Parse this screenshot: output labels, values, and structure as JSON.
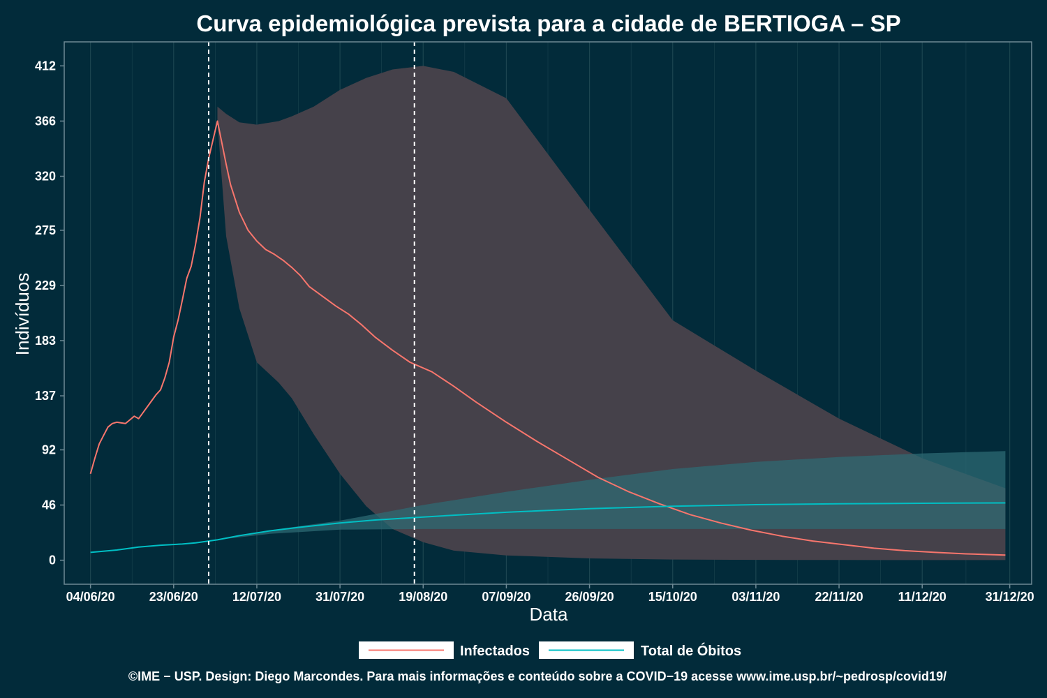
{
  "chart_data": {
    "type": "line",
    "title": "Curva epidemiológica prevista para a cidade de BERTIOGA – SP",
    "xlabel": "Data",
    "ylabel": "Indivíduos",
    "x_ticks": [
      "04/06/20",
      "23/06/20",
      "12/07/20",
      "31/07/20",
      "19/08/20",
      "07/09/20",
      "26/09/20",
      "15/10/20",
      "03/11/20",
      "22/11/20",
      "11/12/20",
      "31/12/20"
    ],
    "y_ticks": [
      "0",
      "46",
      "92",
      "137",
      "183",
      "229",
      "275",
      "320",
      "366",
      "412"
    ],
    "x_range": [
      "29/05/20",
      "05/01/21"
    ],
    "ylim": [
      -20,
      432
    ],
    "grid": true,
    "legend_position": "bottom",
    "vlines": [
      "01/07/20",
      "17/08/20"
    ],
    "colors": {
      "background": "#022B3A",
      "infectados": "#F8766D",
      "obitos": "#00BFC4",
      "band_infectados": "#45414A",
      "band_obitos": "#2E6B74",
      "grid": "#1C4550",
      "axis": "#6E8A95"
    },
    "series": [
      {
        "name": "Infectados",
        "color": "#F8766D",
        "points": [
          [
            "04/06/20",
            72
          ],
          [
            "05/06/20",
            85
          ],
          [
            "06/06/20",
            97
          ],
          [
            "07/06/20",
            104
          ],
          [
            "08/06/20",
            111
          ],
          [
            "09/06/20",
            114
          ],
          [
            "10/06/20",
            115
          ],
          [
            "12/06/20",
            114
          ],
          [
            "13/06/20",
            117
          ],
          [
            "14/06/20",
            120
          ],
          [
            "15/06/20",
            118
          ],
          [
            "16/06/20",
            123
          ],
          [
            "18/06/20",
            133
          ],
          [
            "19/06/20",
            138
          ],
          [
            "20/06/20",
            142
          ],
          [
            "21/06/20",
            152
          ],
          [
            "22/06/20",
            165
          ],
          [
            "23/06/20",
            186
          ],
          [
            "24/06/20",
            200
          ],
          [
            "25/06/20",
            217
          ],
          [
            "26/06/20",
            235
          ],
          [
            "27/06/20",
            245
          ],
          [
            "28/06/20",
            263
          ],
          [
            "29/06/20",
            285
          ],
          [
            "30/06/20",
            315
          ],
          [
            "01/07/20",
            335
          ],
          [
            "03/07/20",
            366
          ],
          [
            "04/07/20",
            348
          ],
          [
            "05/07/20",
            330
          ],
          [
            "06/07/20",
            313
          ],
          [
            "08/07/20",
            290
          ],
          [
            "10/07/20",
            275
          ],
          [
            "12/07/20",
            266
          ],
          [
            "14/07/20",
            259
          ],
          [
            "16/07/20",
            255
          ],
          [
            "18/07/20",
            250
          ],
          [
            "20/07/20",
            244
          ],
          [
            "22/07/20",
            237
          ],
          [
            "24/07/20",
            228
          ],
          [
            "27/07/20",
            220
          ],
          [
            "30/07/20",
            212
          ],
          [
            "02/08/20",
            205
          ],
          [
            "05/08/20",
            196
          ],
          [
            "08/08/20",
            186
          ],
          [
            "12/08/20",
            175
          ],
          [
            "16/08/20",
            165
          ],
          [
            "21/08/20",
            157
          ],
          [
            "26/08/20",
            145
          ],
          [
            "31/08/20",
            132
          ],
          [
            "07/09/20",
            115
          ],
          [
            "14/09/20",
            99
          ],
          [
            "21/09/20",
            84
          ],
          [
            "28/09/20",
            69
          ],
          [
            "05/10/20",
            57
          ],
          [
            "12/10/20",
            47
          ],
          [
            "19/10/20",
            38
          ],
          [
            "26/10/20",
            31
          ],
          [
            "02/11/20",
            25
          ],
          [
            "09/11/20",
            20
          ],
          [
            "16/11/20",
            16
          ],
          [
            "23/11/20",
            13
          ],
          [
            "30/11/20",
            10
          ],
          [
            "07/12/20",
            8
          ],
          [
            "14/12/20",
            6.5
          ],
          [
            "21/12/20",
            5.3
          ],
          [
            "30/12/20",
            4.3
          ]
        ],
        "band": [
          [
            "03/07/20",
            366,
            378
          ],
          [
            "05/07/20",
            270,
            372
          ],
          [
            "08/07/20",
            210,
            365
          ],
          [
            "12/07/20",
            165,
            363
          ],
          [
            "17/07/20",
            148,
            366
          ],
          [
            "20/07/20",
            135,
            370
          ],
          [
            "25/07/20",
            105,
            378
          ],
          [
            "31/07/20",
            72,
            392
          ],
          [
            "06/08/20",
            45,
            402
          ],
          [
            "12/08/20",
            26,
            409
          ],
          [
            "19/08/20",
            15,
            412
          ],
          [
            "26/08/20",
            8,
            407
          ],
          [
            "07/09/20",
            4,
            385
          ],
          [
            "26/09/20",
            1.5,
            292
          ],
          [
            "15/10/20",
            0.6,
            200
          ],
          [
            "03/11/20",
            0.3,
            158
          ],
          [
            "22/11/20",
            0.2,
            118
          ],
          [
            "11/12/20",
            0.1,
            85
          ],
          [
            "30/12/20",
            0.1,
            60
          ]
        ]
      },
      {
        "name": "Total de Óbitos",
        "color": "#00BFC4",
        "points": [
          [
            "04/06/20",
            6.5
          ],
          [
            "10/06/20",
            8.5
          ],
          [
            "15/06/20",
            11
          ],
          [
            "20/06/20",
            12.5
          ],
          [
            "25/06/20",
            13.5
          ],
          [
            "28/06/20",
            14.5
          ],
          [
            "03/07/20",
            17
          ],
          [
            "08/07/20",
            20.5
          ],
          [
            "15/07/20",
            24.5
          ],
          [
            "22/07/20",
            27.5
          ],
          [
            "31/07/20",
            31
          ],
          [
            "08/08/20",
            33.5
          ],
          [
            "19/08/20",
            36
          ],
          [
            "31/08/20",
            38.5
          ],
          [
            "07/09/20",
            40
          ],
          [
            "26/09/20",
            43
          ],
          [
            "15/10/20",
            45
          ],
          [
            "03/11/20",
            46.3
          ],
          [
            "22/11/20",
            47
          ],
          [
            "11/12/20",
            47.5
          ],
          [
            "30/12/20",
            47.8
          ]
        ],
        "band": [
          [
            "03/07/20",
            17,
            17
          ],
          [
            "15/07/20",
            22,
            25
          ],
          [
            "31/07/20",
            25.5,
            33
          ],
          [
            "19/08/20",
            26,
            46
          ],
          [
            "07/09/20",
            26,
            57
          ],
          [
            "26/09/20",
            26,
            67
          ],
          [
            "15/10/20",
            26,
            76
          ],
          [
            "03/11/20",
            26,
            82
          ],
          [
            "22/11/20",
            26,
            86
          ],
          [
            "11/12/20",
            26,
            89
          ],
          [
            "30/12/20",
            26,
            91
          ]
        ]
      }
    ]
  },
  "legend": {
    "items": [
      {
        "label": "Infectados",
        "color": "#F8766D"
      },
      {
        "label": "Total de Óbitos",
        "color": "#00BFC4"
      }
    ]
  },
  "footer": {
    "credit": "©IME − USP. Design: Diego Marcondes. Para mais informações e conteúdo sobre a COVID−19 acesse www.ime.usp.br/~pedrosp/covid19/"
  }
}
